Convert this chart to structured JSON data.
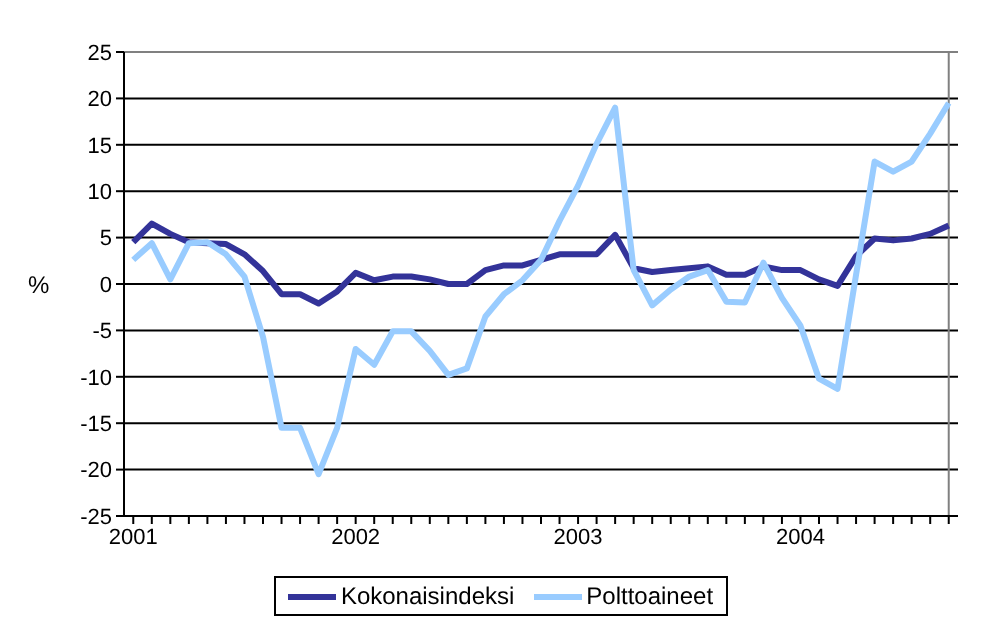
{
  "chart_data": {
    "type": "line",
    "ylabel": "%",
    "categories": [
      "2001",
      null,
      null,
      null,
      null,
      null,
      null,
      null,
      null,
      null,
      null,
      null,
      "2002",
      null,
      null,
      null,
      null,
      null,
      null,
      null,
      null,
      null,
      null,
      null,
      "2003",
      null,
      null,
      null,
      null,
      null,
      null,
      null,
      null,
      null,
      null,
      null,
      "2004",
      null,
      null,
      null,
      null,
      null,
      null,
      null,
      null
    ],
    "series": [
      {
        "name": "Kokonaisindeksi",
        "color": "#333399",
        "values": [
          4.5,
          6.5,
          5.4,
          4.5,
          4.4,
          4.3,
          3.2,
          1.4,
          -1.1,
          -1.1,
          -2.1,
          -0.8,
          1.2,
          0.4,
          0.8,
          0.8,
          0.5,
          0,
          0,
          1.5,
          2.0,
          2.0,
          2.6,
          3.2,
          3.2,
          3.2,
          5.3,
          1.7,
          1.3,
          1.5,
          1.7,
          1.9,
          1.0,
          1.0,
          1.9,
          1.5,
          1.5,
          0.5,
          -0.2,
          3.0,
          4.9,
          4.7,
          4.9,
          5.4,
          6.3
        ]
      },
      {
        "name": "Polttoaineet",
        "color": "#99ccff",
        "values": [
          2.6,
          4.4,
          0.5,
          4.4,
          4.5,
          3.2,
          0.8,
          -5.7,
          -15.5,
          -15.5,
          -20.5,
          -15.5,
          -7.0,
          -8.7,
          -5.1,
          -5.1,
          -7.2,
          -9.8,
          -9.1,
          -3.5,
          -1.1,
          0.4,
          2.6,
          6.8,
          10.6,
          15.1,
          19.0,
          1.5,
          -2.3,
          -0.6,
          0.8,
          1.5,
          -1.9,
          -2.0,
          2.3,
          -1.5,
          -4.5,
          -10.2,
          -11.3,
          1.0,
          13.2,
          12.1,
          13.2,
          16.2,
          19.5
        ]
      }
    ],
    "ylim": [
      -25,
      25
    ],
    "yticks": [
      -25,
      -20,
      -15,
      -10,
      -5,
      0,
      5,
      10,
      15,
      20,
      25
    ],
    "grid": "y",
    "legend": "bottom",
    "marker": "none",
    "line_style": "solid"
  }
}
